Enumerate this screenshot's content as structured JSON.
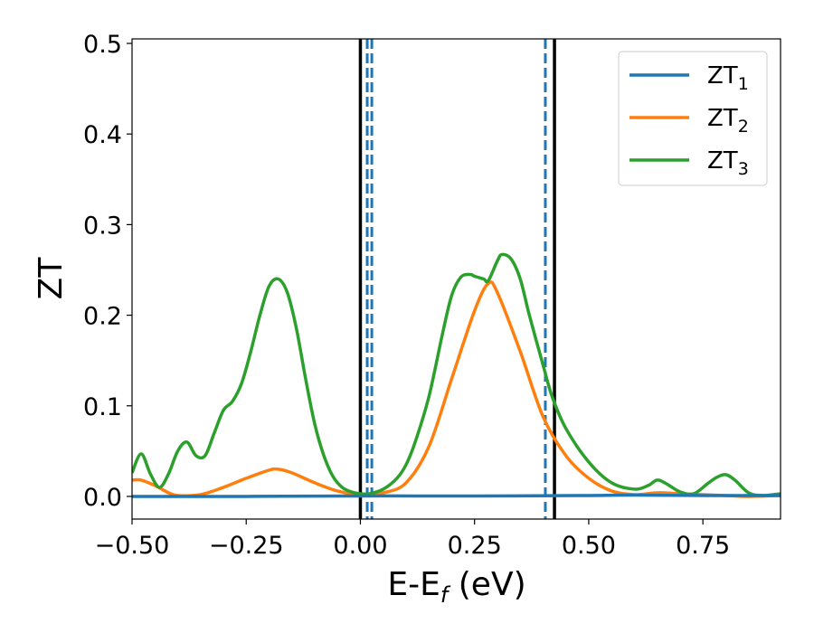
{
  "chart_data": {
    "type": "line",
    "title": "",
    "xlabel": "E-E",
    "xlabel_sub": "f",
    "xlabel_unit": " (eV)",
    "ylabel": "ZT",
    "xlim": [
      -0.5,
      0.92
    ],
    "ylim": [
      -0.025,
      0.505
    ],
    "xticks": [
      -0.5,
      -0.25,
      0.0,
      0.25,
      0.5,
      0.75
    ],
    "xtick_labels": [
      "−0.50",
      "−0.25",
      "0.00",
      "0.25",
      "0.50",
      "0.75"
    ],
    "yticks": [
      0.0,
      0.1,
      0.2,
      0.3,
      0.4,
      0.5
    ],
    "ytick_labels": [
      "0.0",
      "0.1",
      "0.2",
      "0.3",
      "0.4",
      "0.5"
    ],
    "grid": false,
    "legend": "top-right",
    "vlines": [
      {
        "x": 0.0,
        "style": "solid",
        "color": "#000000"
      },
      {
        "x": 0.425,
        "style": "solid",
        "color": "#000000"
      },
      {
        "x": 0.015,
        "style": "dashed",
        "color": "#1f77b4"
      },
      {
        "x": 0.025,
        "style": "dashed",
        "color": "#1f77b4"
      },
      {
        "x": 0.405,
        "style": "dashed",
        "color": "#1f77b4"
      }
    ],
    "series": [
      {
        "name": "ZT",
        "name_sub": "1",
        "color": "#1f77b4",
        "x": [
          -0.5,
          -0.25,
          0.0,
          0.25,
          0.5,
          0.6,
          0.75,
          0.92
        ],
        "y": [
          0.0,
          0.0,
          0.0005,
          0.0005,
          0.001,
          0.0015,
          0.001,
          0.001
        ]
      },
      {
        "name": "ZT",
        "name_sub": "2",
        "color": "#ff7f0e",
        "x": [
          -0.5,
          -0.48,
          -0.45,
          -0.42,
          -0.4,
          -0.35,
          -0.3,
          -0.25,
          -0.2,
          -0.18,
          -0.15,
          -0.1,
          -0.05,
          0.0,
          0.05,
          0.1,
          0.15,
          0.2,
          0.25,
          0.28,
          0.3,
          0.35,
          0.4,
          0.45,
          0.5,
          0.55,
          0.6,
          0.65,
          0.7,
          0.75,
          0.8,
          0.85,
          0.92
        ],
        "y": [
          0.018,
          0.018,
          0.012,
          0.004,
          0.001,
          0.002,
          0.01,
          0.02,
          0.029,
          0.03,
          0.026,
          0.015,
          0.006,
          0.002,
          0.004,
          0.015,
          0.055,
          0.13,
          0.205,
          0.235,
          0.225,
          0.16,
          0.088,
          0.045,
          0.02,
          0.006,
          0.002,
          0.004,
          0.003,
          0.002,
          0.001,
          0.0,
          0.001
        ]
      },
      {
        "name": "ZT",
        "name_sub": "3",
        "color": "#2ca02c",
        "x": [
          -0.5,
          -0.48,
          -0.46,
          -0.44,
          -0.42,
          -0.4,
          -0.38,
          -0.36,
          -0.34,
          -0.32,
          -0.3,
          -0.28,
          -0.26,
          -0.24,
          -0.22,
          -0.2,
          -0.18,
          -0.16,
          -0.14,
          -0.12,
          -0.1,
          -0.08,
          -0.06,
          -0.04,
          -0.02,
          0.0,
          0.02,
          0.05,
          0.08,
          0.1,
          0.12,
          0.15,
          0.18,
          0.2,
          0.22,
          0.24,
          0.25,
          0.27,
          0.28,
          0.3,
          0.31,
          0.33,
          0.35,
          0.37,
          0.4,
          0.42,
          0.45,
          0.5,
          0.55,
          0.6,
          0.63,
          0.65,
          0.67,
          0.7,
          0.73,
          0.76,
          0.78,
          0.8,
          0.82,
          0.85,
          0.88,
          0.92
        ],
        "y": [
          0.026,
          0.047,
          0.025,
          0.01,
          0.025,
          0.05,
          0.06,
          0.045,
          0.045,
          0.07,
          0.095,
          0.105,
          0.125,
          0.16,
          0.2,
          0.232,
          0.24,
          0.225,
          0.185,
          0.13,
          0.08,
          0.045,
          0.022,
          0.01,
          0.005,
          0.003,
          0.003,
          0.008,
          0.02,
          0.035,
          0.06,
          0.11,
          0.18,
          0.222,
          0.242,
          0.245,
          0.243,
          0.24,
          0.238,
          0.26,
          0.267,
          0.262,
          0.24,
          0.2,
          0.145,
          0.11,
          0.075,
          0.038,
          0.015,
          0.008,
          0.012,
          0.018,
          0.014,
          0.005,
          0.003,
          0.014,
          0.021,
          0.024,
          0.018,
          0.004,
          0.001,
          0.003
        ]
      }
    ]
  }
}
